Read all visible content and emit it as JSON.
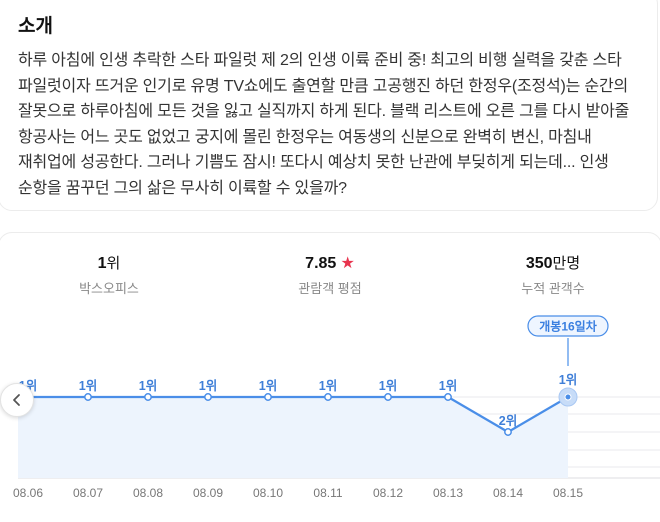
{
  "intro": {
    "title": "소개",
    "body": "하루 아침에 인생 추락한 스타 파일럿 제 2의 인생 이륙 준비 중! 최고의 비행 실력을 갖춘 스타 파일럿이자 뜨거운 인기로 유명 TV쇼에도 출연할 만큼 고공행진 하던 한정우(조정석)는 순간의 잘못으로 하루아침에 모든 것을 잃고 실직까지 하게 된다. 블랙 리스트에 오른 그를 다시 받아줄 항공사는 어느 곳도 없었고 궁지에 몰린 한정우는 여동생의 신분으로 완벽히 변신, 마침내 재취업에 성공한다. 그러나 기쁨도 잠시! 또다시 예상치 못한 난관에 부딪히게 되는데... 인생 순항을 꿈꾸던 그의 삶은 무사히 이륙할 수 있을까?"
  },
  "stats": {
    "boxoffice": {
      "value": "1",
      "unit": "위",
      "label": "박스오피스"
    },
    "rating": {
      "value": "7.85",
      "label": "관람객 평점"
    },
    "audience": {
      "value": "350",
      "unit": "만명",
      "label": "누적 관객수"
    }
  },
  "chart_data": {
    "type": "line",
    "x": [
      "08.06",
      "08.07",
      "08.08",
      "08.09",
      "08.10",
      "08.11",
      "08.12",
      "08.13",
      "08.14",
      "08.15"
    ],
    "values": [
      1,
      1,
      1,
      1,
      1,
      1,
      1,
      1,
      2,
      1
    ],
    "point_labels": [
      "1위",
      "1위",
      "1위",
      "1위",
      "1위",
      "1위",
      "1위",
      "1위",
      "2위",
      "1위"
    ],
    "highlight_label": "개봉16일차",
    "ylim": [
      0.9,
      2.1
    ],
    "color": "#4a8ee8",
    "fill": "#edf4fd"
  }
}
